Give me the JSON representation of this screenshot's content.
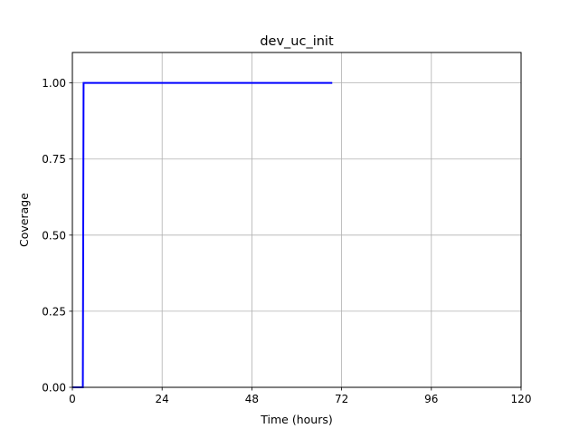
{
  "chart_data": {
    "type": "line",
    "title": "dev_uc_init",
    "xlabel": "Time (hours)",
    "ylabel": "Coverage",
    "xlim": [
      0,
      120
    ],
    "ylim": [
      0,
      1.1
    ],
    "xticks": [
      0,
      24,
      48,
      72,
      96,
      120
    ],
    "xtick_labels": [
      "0",
      "24",
      "48",
      "72",
      "96",
      "120"
    ],
    "yticks": [
      0,
      0.25,
      0.5,
      0.75,
      1.0
    ],
    "ytick_labels": [
      "0.00",
      "0.25",
      "0.50",
      "0.75",
      "1.00"
    ],
    "grid": true,
    "series": [
      {
        "color": "#0000ff",
        "x": [
          0,
          2.8,
          3.0,
          69.5
        ],
        "y": [
          0,
          0,
          1.0,
          1.0
        ]
      }
    ]
  }
}
